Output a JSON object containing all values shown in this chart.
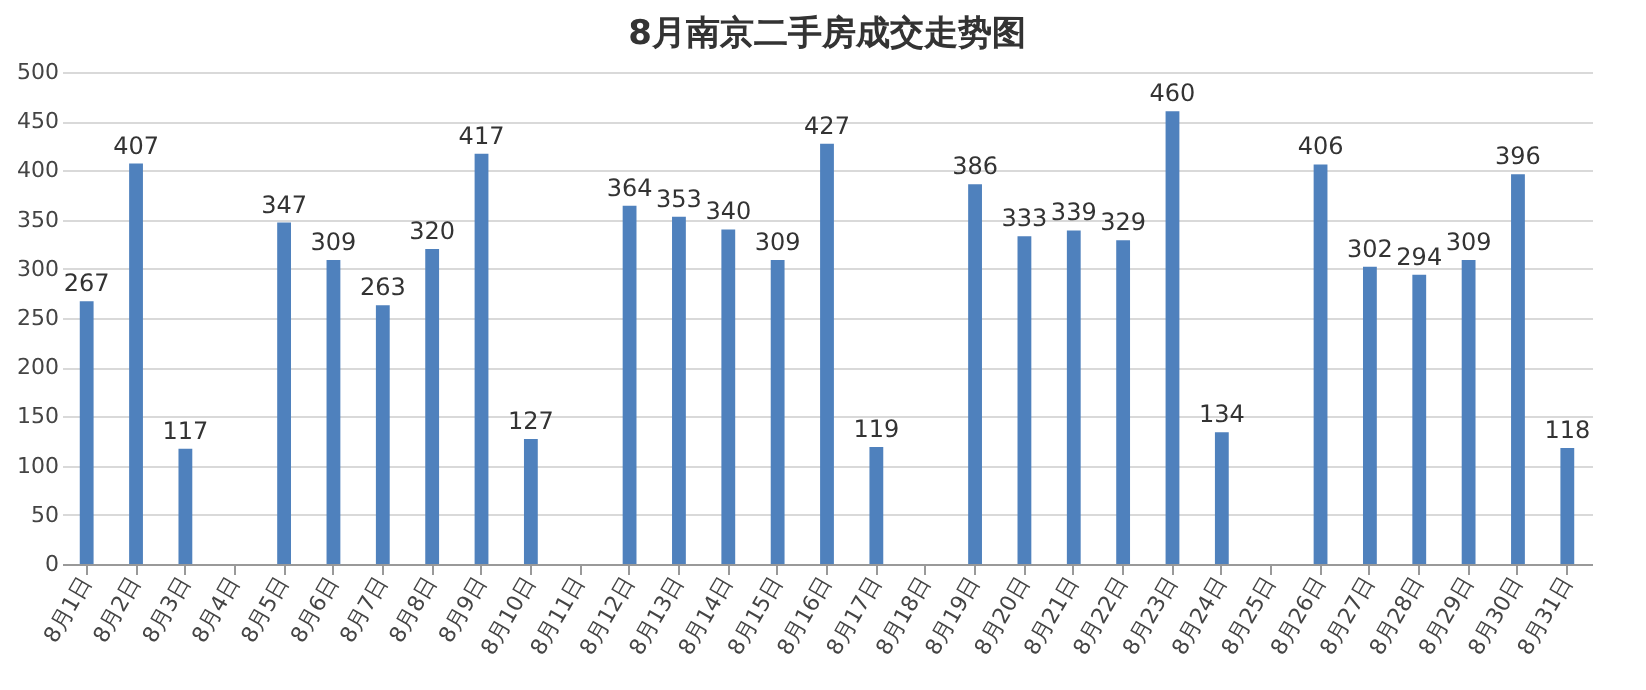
{
  "chart_data": {
    "type": "bar",
    "title": "8月南京二手房成交走势图",
    "categories": [
      "8月1日",
      "8月2日",
      "8月3日",
      "8月4日",
      "8月5日",
      "8月6日",
      "8月7日",
      "8月8日",
      "8月9日",
      "8月10日",
      "8月11日",
      "8月12日",
      "8月13日",
      "8月14日",
      "8月15日",
      "8月16日",
      "8月17日",
      "8月18日",
      "8月19日",
      "8月20日",
      "8月21日",
      "8月22日",
      "8月23日",
      "8月24日",
      "8月25日",
      "8月26日",
      "8月27日",
      "8月28日",
      "8月29日",
      "8月30日",
      "8月31日"
    ],
    "values": [
      267,
      407,
      117,
      null,
      347,
      309,
      263,
      320,
      417,
      127,
      null,
      364,
      353,
      340,
      309,
      427,
      119,
      null,
      386,
      333,
      339,
      329,
      460,
      134,
      null,
      406,
      302,
      294,
      309,
      396,
      118
    ],
    "color": "#4f81bd",
    "ylim": [
      0,
      500
    ],
    "yticks": [
      0,
      50,
      100,
      150,
      200,
      250,
      300,
      350,
      400,
      450,
      500
    ],
    "grid": "y",
    "data_labels": true
  }
}
